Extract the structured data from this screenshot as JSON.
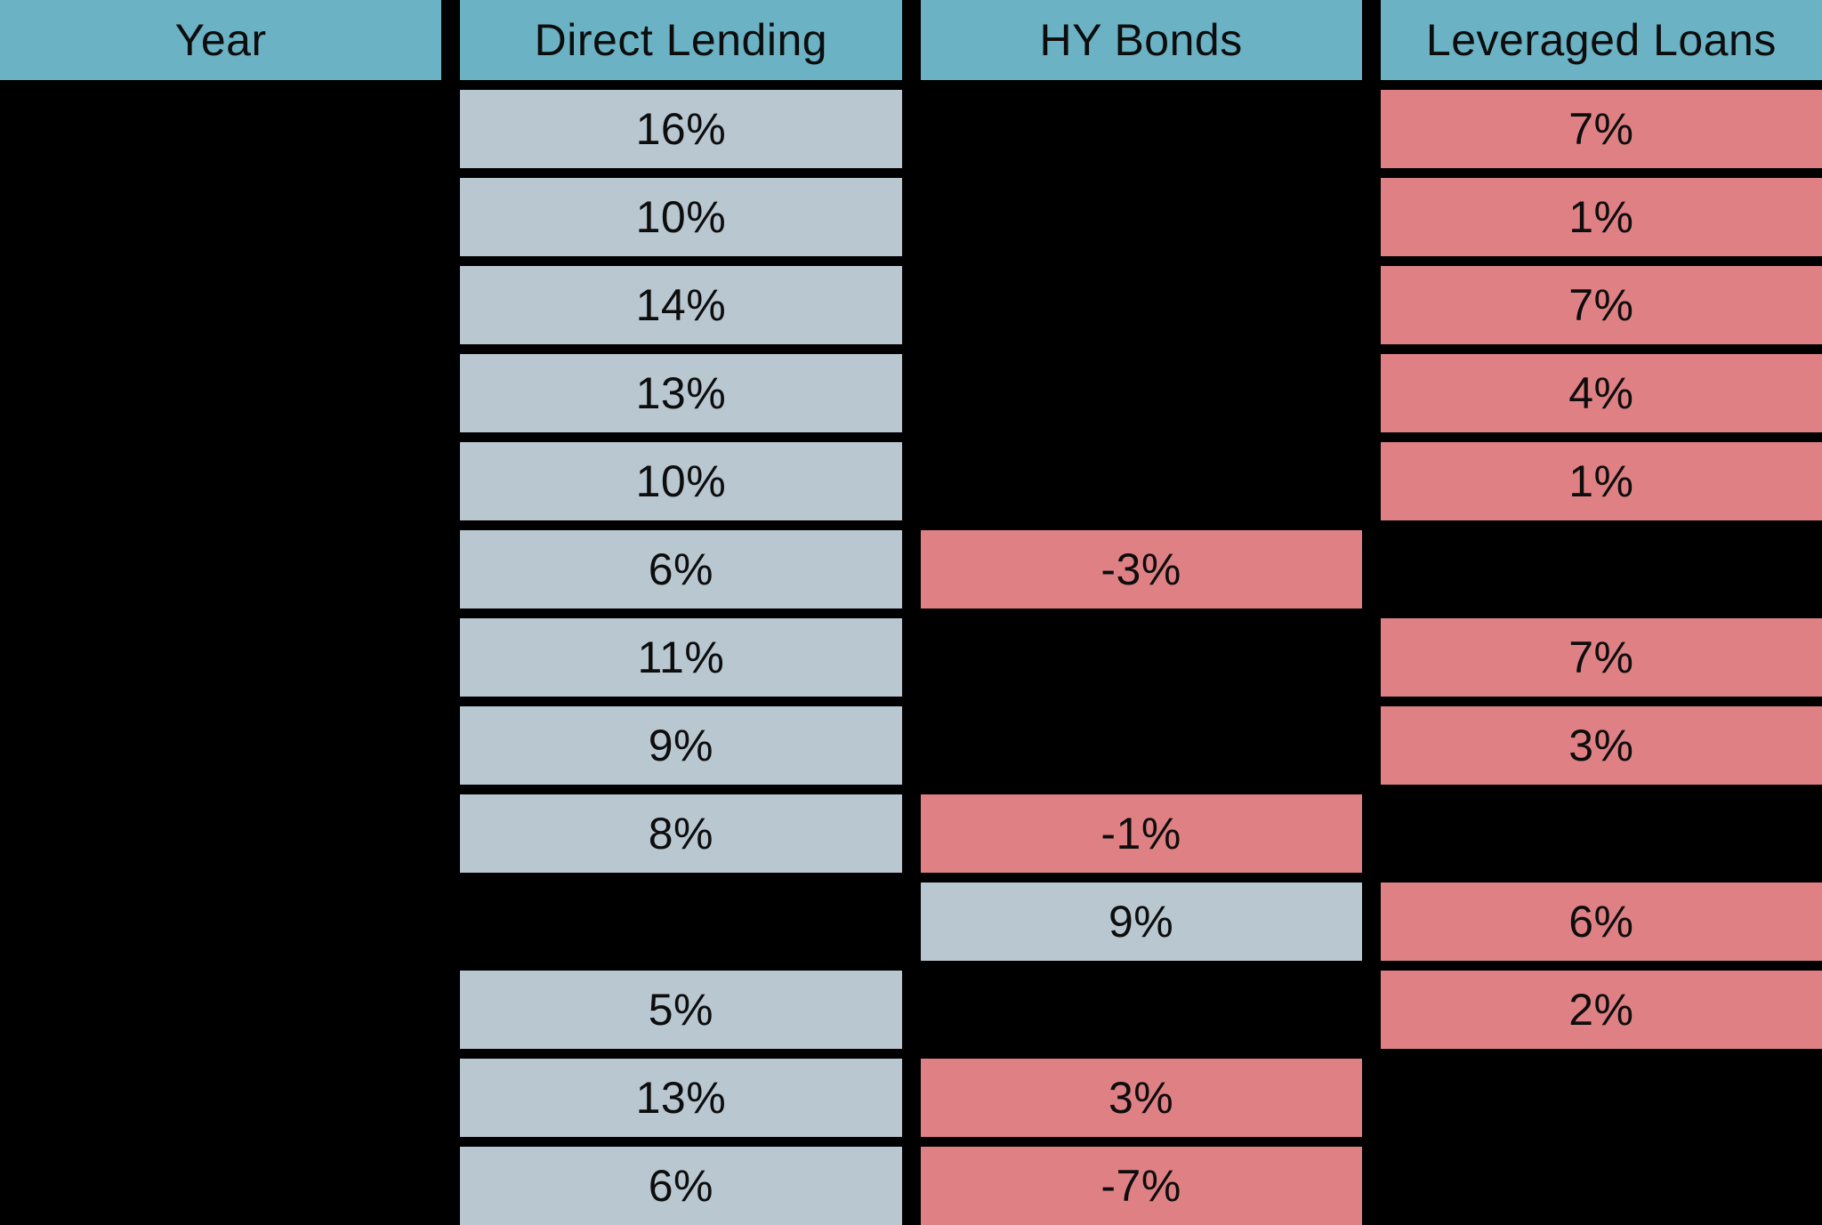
{
  "colors": {
    "background": "#000000",
    "header_fill": "#6ab2c4",
    "gray_fill": "#b9c7d1",
    "red_fill": "#df8184",
    "text": "#0d0d0d"
  },
  "table": {
    "columns": [
      {
        "label": "Year"
      },
      {
        "label": "Direct Lending"
      },
      {
        "label": "HY Bonds"
      },
      {
        "label": "Leveraged Loans"
      }
    ],
    "rows": [
      {
        "cells": [
          {
            "text": "",
            "variant": "empty"
          },
          {
            "text": "16%",
            "variant": "gray"
          },
          {
            "text": "",
            "variant": "empty"
          },
          {
            "text": "7%",
            "variant": "red"
          }
        ]
      },
      {
        "cells": [
          {
            "text": "",
            "variant": "empty"
          },
          {
            "text": "10%",
            "variant": "gray"
          },
          {
            "text": "",
            "variant": "empty"
          },
          {
            "text": "1%",
            "variant": "red"
          }
        ]
      },
      {
        "cells": [
          {
            "text": "",
            "variant": "empty"
          },
          {
            "text": "14%",
            "variant": "gray"
          },
          {
            "text": "",
            "variant": "empty"
          },
          {
            "text": "7%",
            "variant": "red"
          }
        ]
      },
      {
        "cells": [
          {
            "text": "",
            "variant": "empty"
          },
          {
            "text": "13%",
            "variant": "gray"
          },
          {
            "text": "",
            "variant": "empty"
          },
          {
            "text": "4%",
            "variant": "red"
          }
        ]
      },
      {
        "cells": [
          {
            "text": "",
            "variant": "empty"
          },
          {
            "text": "10%",
            "variant": "gray"
          },
          {
            "text": "",
            "variant": "empty"
          },
          {
            "text": "1%",
            "variant": "red"
          }
        ]
      },
      {
        "cells": [
          {
            "text": "",
            "variant": "empty"
          },
          {
            "text": "6%",
            "variant": "gray"
          },
          {
            "text": "-3%",
            "variant": "red"
          },
          {
            "text": "",
            "variant": "empty"
          }
        ]
      },
      {
        "cells": [
          {
            "text": "",
            "variant": "empty"
          },
          {
            "text": "11%",
            "variant": "gray"
          },
          {
            "text": "",
            "variant": "empty"
          },
          {
            "text": "7%",
            "variant": "red"
          }
        ]
      },
      {
        "cells": [
          {
            "text": "",
            "variant": "empty"
          },
          {
            "text": "9%",
            "variant": "gray"
          },
          {
            "text": "",
            "variant": "empty"
          },
          {
            "text": "3%",
            "variant": "red"
          }
        ]
      },
      {
        "cells": [
          {
            "text": "",
            "variant": "empty"
          },
          {
            "text": "8%",
            "variant": "gray"
          },
          {
            "text": "-1%",
            "variant": "red"
          },
          {
            "text": "",
            "variant": "empty"
          }
        ]
      },
      {
        "cells": [
          {
            "text": "",
            "variant": "empty"
          },
          {
            "text": "",
            "variant": "empty"
          },
          {
            "text": "9%",
            "variant": "gray"
          },
          {
            "text": "6%",
            "variant": "red"
          }
        ]
      },
      {
        "cells": [
          {
            "text": "",
            "variant": "empty"
          },
          {
            "text": "5%",
            "variant": "gray"
          },
          {
            "text": "",
            "variant": "empty"
          },
          {
            "text": "2%",
            "variant": "red"
          }
        ]
      },
      {
        "cells": [
          {
            "text": "",
            "variant": "empty"
          },
          {
            "text": "13%",
            "variant": "gray"
          },
          {
            "text": "3%",
            "variant": "red"
          },
          {
            "text": "",
            "variant": "empty"
          }
        ]
      },
      {
        "cells": [
          {
            "text": "",
            "variant": "empty"
          },
          {
            "text": "6%",
            "variant": "gray"
          },
          {
            "text": "-7%",
            "variant": "red"
          },
          {
            "text": "",
            "variant": "empty"
          }
        ]
      }
    ]
  },
  "chart_data": {
    "type": "table",
    "title": "",
    "columns": [
      "Year",
      "Direct Lending",
      "HY Bonds",
      "Leveraged Loans"
    ],
    "units": "percent",
    "rows": [
      [
        null,
        16,
        null,
        7
      ],
      [
        null,
        10,
        null,
        1
      ],
      [
        null,
        14,
        null,
        7
      ],
      [
        null,
        13,
        null,
        4
      ],
      [
        null,
        10,
        null,
        1
      ],
      [
        null,
        6,
        -3,
        null
      ],
      [
        null,
        11,
        null,
        7
      ],
      [
        null,
        9,
        null,
        3
      ],
      [
        null,
        8,
        -1,
        null
      ],
      [
        null,
        null,
        9,
        6
      ],
      [
        null,
        5,
        null,
        2
      ],
      [
        null,
        13,
        3,
        null
      ],
      [
        null,
        6,
        -7,
        null
      ]
    ],
    "cell_color_coding": {
      "gray": "#b9c7d1",
      "red": "#df8184",
      "header": "#6ab2c4"
    },
    "layout_hints": {
      "background": "black",
      "year_column_blank": true,
      "grid": "black gaps between cells"
    }
  }
}
